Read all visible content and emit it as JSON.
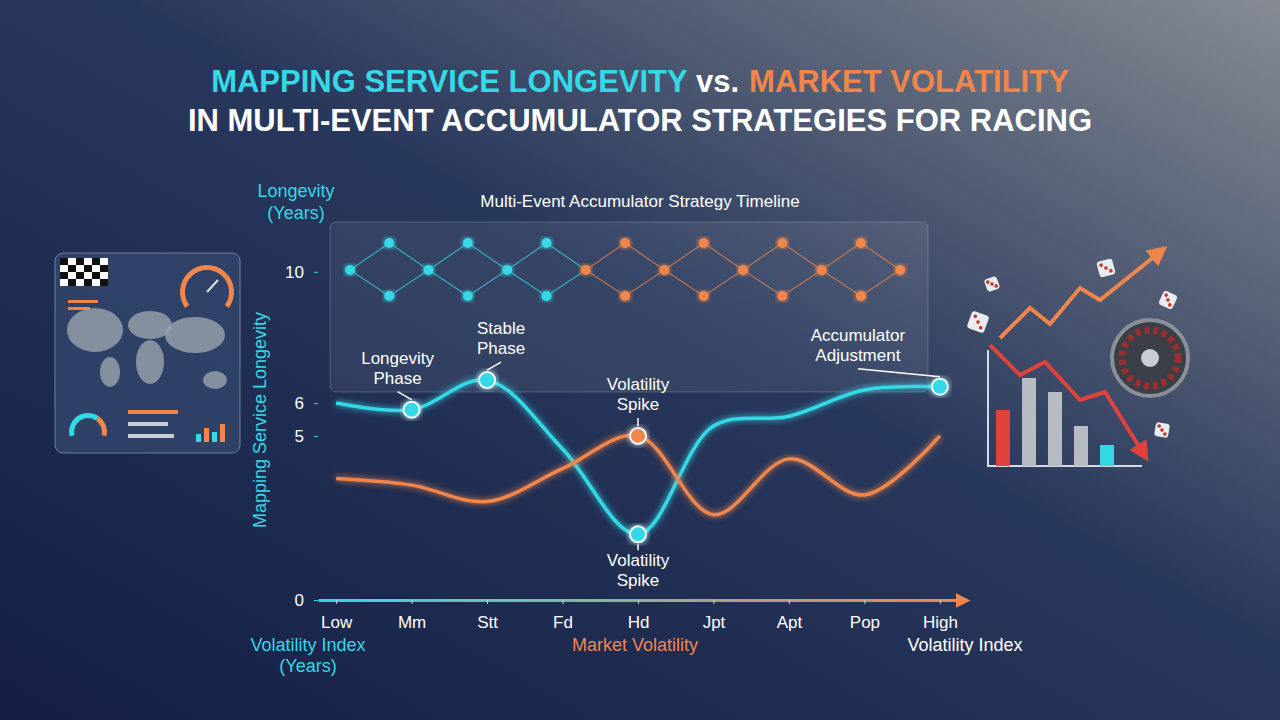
{
  "chart_data": {
    "type": "line",
    "title": [
      "MAPPING SERVICE LONGEVITY",
      "vs.",
      "MARKET VOLATILITY"
    ],
    "subtitle": "IN MULTI-EVENT ACCUMULATOR STRATEGIES FOR RACING",
    "plot_title": "Multi-Event Accumulator Strategy Timeline",
    "y_label": "Mapping Service Longevity",
    "y_label_top": "Longevity (Years)",
    "x_label": "Market Volatility",
    "x_label_left": "Volatility Index (Years)",
    "x_label_right": "Volatility Index",
    "categories": [
      "Low",
      "Mm",
      "Stt",
      "Fd",
      "Hd",
      "Jpt",
      "Apt",
      "Pop",
      "High"
    ],
    "series": [
      {
        "color": "#35d8e6",
        "line_style": "solid",
        "marker": "circle",
        "values": [
          6.0,
          5.8,
          6.7,
          4.6,
          2.0,
          5.3,
          5.6,
          6.4,
          6.5
        ],
        "annotations": [
          {
            "x": "Mm",
            "text": "Longevity Phase"
          },
          {
            "x": "Stt",
            "text": "Stable Phase"
          },
          {
            "x": "Hd",
            "text": "Volatility Spike"
          },
          {
            "x": "High",
            "text": "Accumulator Adjustment"
          }
        ]
      },
      {
        "color": "#f0864c",
        "line_style": "solid",
        "marker": "circle",
        "values": [
          3.7,
          3.5,
          3.0,
          4.0,
          5.0,
          2.6,
          4.3,
          3.2,
          5.0
        ],
        "annotations": [
          {
            "x": "Hd",
            "text": "Volatility Spike"
          }
        ]
      }
    ],
    "ylim": [
      0,
      11
    ],
    "yticks": [
      0,
      5,
      6,
      10
    ],
    "grid": false
  }
}
